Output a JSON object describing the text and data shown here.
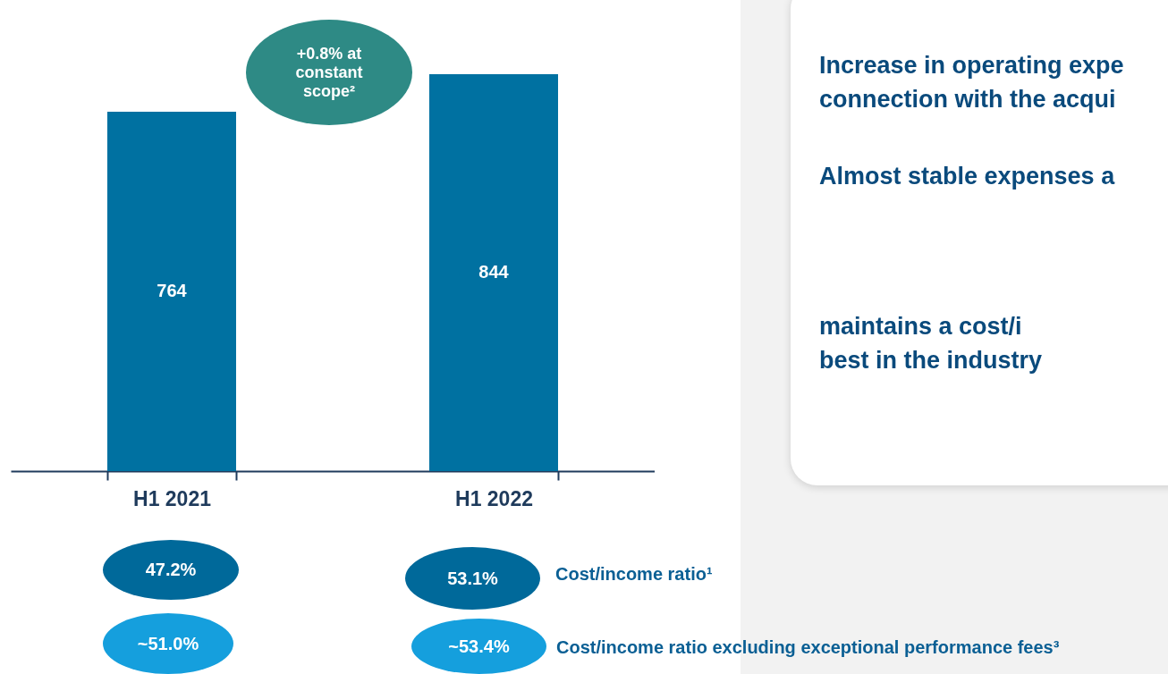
{
  "chart_data": [
    {
      "type": "bar",
      "categories": [
        "H1 2021",
        "H1 2022"
      ],
      "values": [
        764,
        844
      ],
      "color": "#0071a1",
      "data_labels": true,
      "annotations": [
        "+0.8% at constant scope²",
        "47.2%",
        "53.1%",
        "Cost/income ratio¹",
        "~51.0%",
        "~53.4%",
        "Cost/income ratio  excluding exceptional performance fees³"
      ]
    },
    {
      "type": "other",
      "annotations": [
        "Increase in operating expe",
        "connection with the acqui",
        "Almost stable expenses a",
        "maintains a cost/i",
        "best in the industry"
      ]
    }
  ]
}
